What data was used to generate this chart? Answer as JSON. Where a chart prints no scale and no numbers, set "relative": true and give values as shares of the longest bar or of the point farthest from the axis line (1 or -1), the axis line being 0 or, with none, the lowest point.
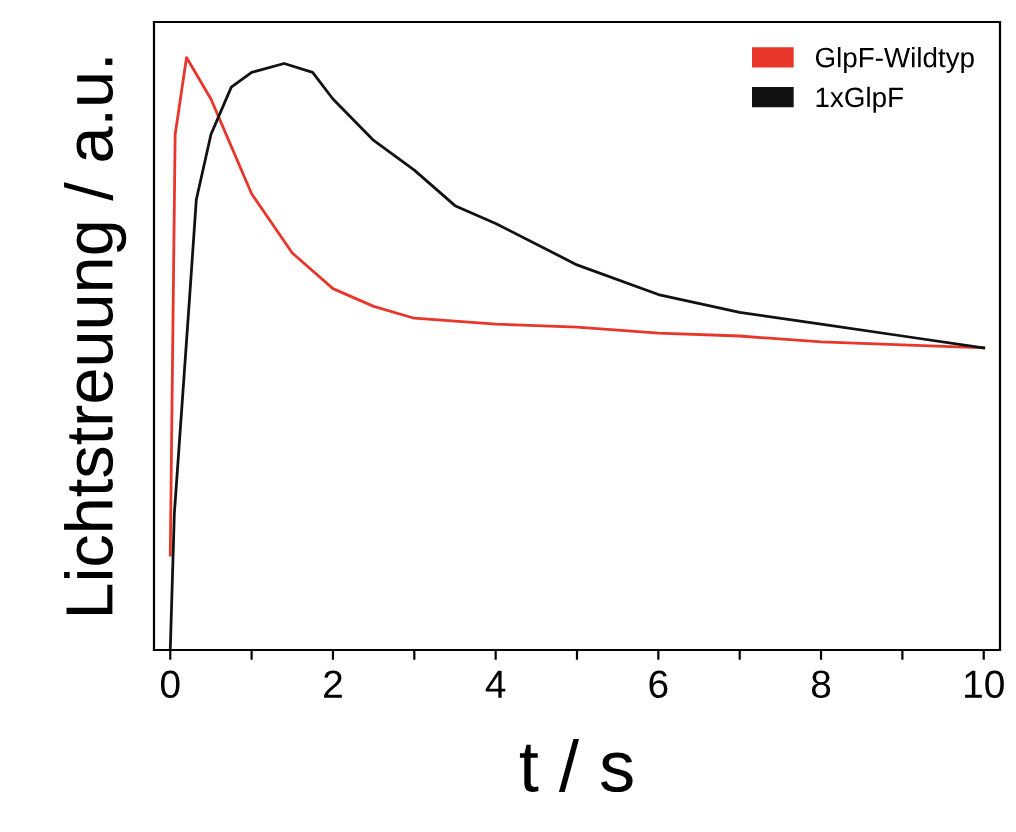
{
  "chart_data": {
    "type": "line",
    "xlabel": "t / s",
    "ylabel": "Lichtstreuung / a.u.",
    "relative": true,
    "xlim": [
      -0.2,
      10.2
    ],
    "xticks": [
      0,
      {
        "value": 1,
        "label": null
      },
      2,
      {
        "value": 3,
        "label": null
      },
      4,
      {
        "value": 5,
        "label": null
      },
      6,
      {
        "value": 7,
        "label": null
      },
      8,
      {
        "value": 9,
        "label": null
      },
      10
    ],
    "legend": "top right",
    "grid": false,
    "marker": "none",
    "line_style": "solid",
    "series": [
      {
        "name": "GlpF-Wildtyp",
        "color": "#e8362a",
        "x": [
          0,
          0.06,
          0.2,
          0.5,
          0.75,
          1,
          1.5,
          2,
          2.5,
          3,
          4,
          5,
          6,
          7,
          8,
          9,
          10
        ],
        "values": [
          0.16,
          0.87,
          1.0,
          0.93,
          0.85,
          0.77,
          0.67,
          0.61,
          0.58,
          0.56,
          0.55,
          0.545,
          0.535,
          0.53,
          0.52,
          0.515,
          0.51
        ]
      },
      {
        "name": "1xGlpF",
        "color": "#111111",
        "x": [
          0,
          0.05,
          0.24,
          0.32,
          0.5,
          0.75,
          1,
          1.4,
          1.75,
          2,
          2.5,
          3,
          3.5,
          4,
          5,
          6,
          7,
          8,
          9,
          10
        ],
        "values": [
          0,
          0.23,
          0.6,
          0.76,
          0.87,
          0.95,
          0.975,
          0.99,
          0.975,
          0.93,
          0.86,
          0.81,
          0.75,
          0.72,
          0.65,
          0.6,
          0.57,
          0.55,
          0.53,
          0.51
        ]
      }
    ]
  }
}
